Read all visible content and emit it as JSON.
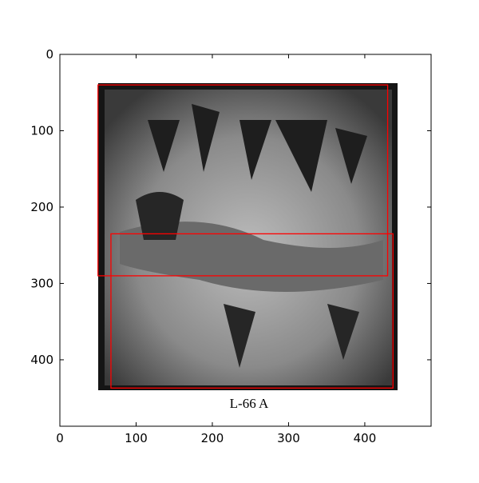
{
  "chart_data": {
    "type": "image",
    "annotations": [
      "L-66 A"
    ],
    "xlim": [
      0,
      487
    ],
    "ylim": [
      487,
      0
    ],
    "xticks": [
      0,
      100,
      200,
      300,
      400
    ],
    "yticks": [
      0,
      100,
      200,
      300,
      400
    ],
    "rectangles": [
      {
        "x": 50,
        "y": 40,
        "width": 380,
        "height": 250
      },
      {
        "x": 67,
        "y": 235,
        "width": 370,
        "height": 202
      }
    ],
    "color": "#ff0000"
  }
}
